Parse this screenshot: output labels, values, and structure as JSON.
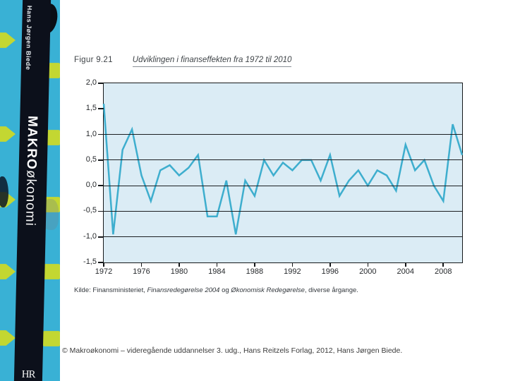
{
  "sidebar": {
    "author": "Hans Jørgen Biede",
    "title_caps": "MAKRO",
    "title_lower": "økonomi",
    "publisher_logo": "HR",
    "colors": {
      "turquoise": "#39b1d5",
      "lime": "#c3d732",
      "spine_black": "#0c101b"
    }
  },
  "figure": {
    "label": "Figur 9.21",
    "title": "Udviklingen i finanseffekten fra 1972 til 2010"
  },
  "source_note": {
    "prefix": "Kilde: Finansministeriet, ",
    "italic1": "Finansredegørelse 2004",
    "mid": " og ",
    "italic2": "Økonomisk Redegørelse",
    "suffix": ", diverse årgange."
  },
  "copyright": "© Makroøkonomi – videregående uddannelser 3. udg., Hans Reitzels Forlag, 2012, Hans Jørgen Biede.",
  "chart_data": {
    "type": "line",
    "title": "Udviklingen i finanseffekten fra 1972 til 2010",
    "xlabel": "",
    "ylabel": "",
    "xlim": [
      1972,
      2010
    ],
    "ylim": [
      -1.5,
      2.0
    ],
    "x": [
      1972,
      1973,
      1974,
      1975,
      1976,
      1977,
      1978,
      1979,
      1980,
      1981,
      1982,
      1983,
      1984,
      1985,
      1986,
      1987,
      1988,
      1989,
      1990,
      1991,
      1992,
      1993,
      1994,
      1995,
      1996,
      1997,
      1998,
      1999,
      2000,
      2001,
      2002,
      2003,
      2004,
      2005,
      2006,
      2007,
      2008,
      2009,
      2010
    ],
    "series": [
      {
        "name": "Finanseffekten",
        "values": [
          1.6,
          -0.95,
          0.7,
          1.1,
          0.2,
          -0.3,
          0.3,
          0.4,
          0.2,
          0.35,
          0.6,
          -0.6,
          -0.6,
          0.1,
          -0.95,
          0.1,
          -0.2,
          0.5,
          0.2,
          0.45,
          0.3,
          0.5,
          0.5,
          0.1,
          0.6,
          -0.2,
          0.1,
          0.3,
          0.0,
          0.3,
          0.2,
          -0.1,
          0.8,
          0.3,
          0.5,
          0.0,
          -0.3,
          1.2,
          0.6
        ]
      }
    ],
    "yticks": [
      {
        "value": 2.0,
        "label": "2,0"
      },
      {
        "value": 1.5,
        "label": "1,5"
      },
      {
        "value": 1.0,
        "label": "1,0"
      },
      {
        "value": 0.5,
        "label": "0,5"
      },
      {
        "value": 0.0,
        "label": "0,0"
      },
      {
        "value": -0.5,
        "label": "-0,5"
      },
      {
        "value": -1.0,
        "label": "-1,0"
      },
      {
        "value": -1.5,
        "label": "-1,5"
      }
    ],
    "xticks": [
      1972,
      1976,
      1980,
      1984,
      1988,
      1992,
      1996,
      2000,
      2004,
      2008
    ],
    "gridline_values": [
      1.0,
      0.5,
      0.0,
      -0.5,
      -1.0
    ],
    "grid": "horizontal gridlines only",
    "legend_position": "none",
    "line_color": "#3eaece",
    "plot_bg": "#dbecf5"
  }
}
